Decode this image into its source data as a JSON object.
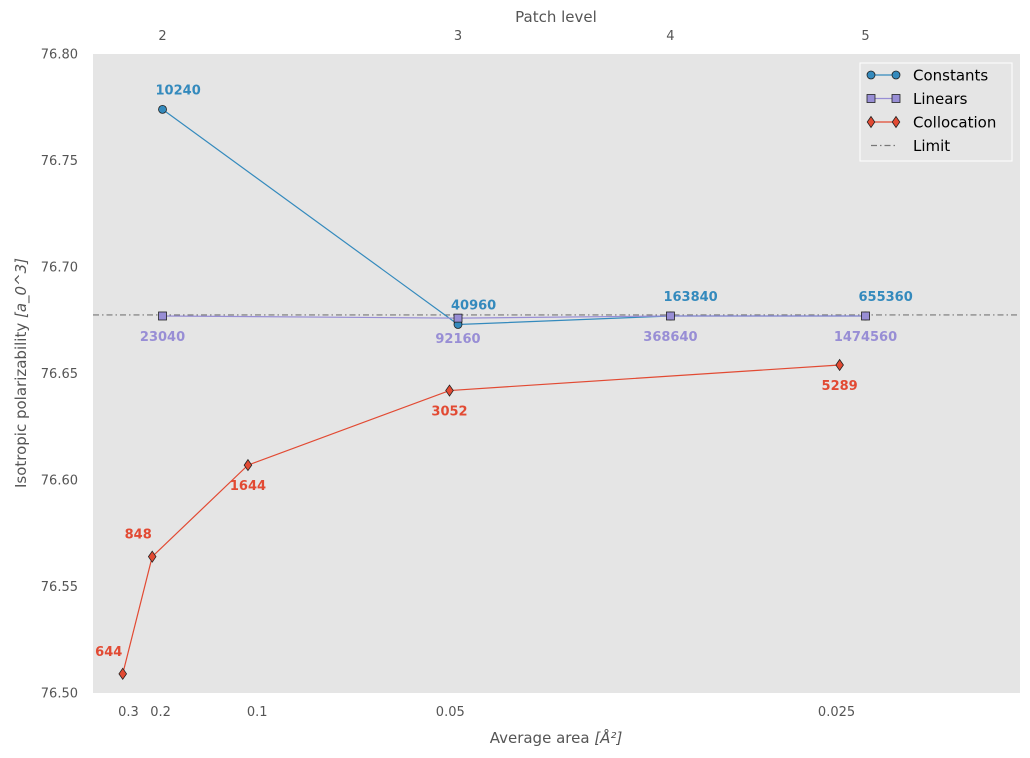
{
  "chart_data": {
    "type": "line",
    "ylabel": "Isotropic polarizability",
    "ylabel_unit": "[a_0^3]",
    "xlabel": "Average area",
    "xlabel_unit": "[Å²]",
    "top_xlabel": "Patch level",
    "x_scale": "reciprocal",
    "ylim": [
      76.5,
      76.8
    ],
    "xlim_reciprocal": [
      1.5,
      49.5
    ],
    "y_ticks": [
      "76.50",
      "76.55",
      "76.60",
      "76.65",
      "76.70",
      "76.75",
      "76.80"
    ],
    "y_tick_values": [
      76.5,
      76.55,
      76.6,
      76.65,
      76.7,
      76.75,
      76.8
    ],
    "x_ticks": [
      "0.3",
      "0.2",
      "0.1",
      "0.05",
      "0.025"
    ],
    "x_tick_values": [
      0.3,
      0.2,
      0.1,
      0.05,
      0.025
    ],
    "top_ticks": [
      "2",
      "3",
      "4",
      "5"
    ],
    "top_tick_inv_area": [
      5.1,
      20.4,
      31.4,
      41.5
    ],
    "grid": false,
    "background": "#e5e5e5",
    "legend_position": "top-right",
    "legend": [
      "Constants",
      "Linears",
      "Collocation",
      "Limit"
    ],
    "limit": 76.6775,
    "series": [
      {
        "name": "Constants",
        "color": "#348abd",
        "marker": "circle",
        "inv_area": [
          5.1,
          20.4,
          31.4,
          41.5
        ],
        "y": [
          76.774,
          76.673,
          76.677,
          76.677
        ],
        "labels": [
          "10240",
          "40960",
          "163840",
          "655360"
        ],
        "label_position": "above"
      },
      {
        "name": "Linears",
        "color": "#988ed5",
        "marker": "square",
        "inv_area": [
          5.1,
          20.4,
          31.4,
          41.5
        ],
        "y": [
          76.677,
          76.676,
          76.677,
          76.677
        ],
        "labels": [
          "23040",
          "92160",
          "368640",
          "1474560"
        ],
        "label_position": "below"
      },
      {
        "name": "Collocation",
        "color": "#e24a33",
        "marker": "diamond",
        "x": [
          0.329,
          0.219,
          0.105,
          0.0501,
          0.0249
        ],
        "y": [
          76.509,
          76.564,
          76.607,
          76.642,
          76.654
        ],
        "labels": [
          "644",
          "848",
          "1644",
          "3052",
          "5289"
        ],
        "label_positions": [
          "above-left",
          "above-left",
          "below",
          "below",
          "below"
        ]
      }
    ]
  }
}
